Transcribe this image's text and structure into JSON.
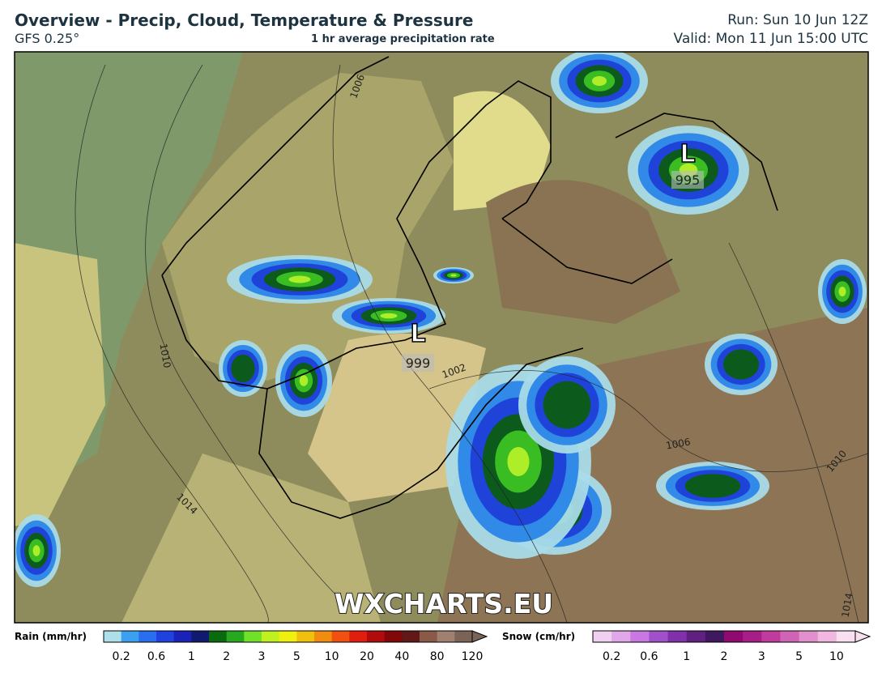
{
  "header": {
    "title": "Overview - Precip, Cloud, Temperature & Pressure",
    "model": "GFS 0.25°",
    "subtitle": "1 hr average precipitation rate",
    "run": "Run: Sun 10 Jun 12Z",
    "valid": "Valid: Mon 11 Jun 15:00 UTC"
  },
  "map": {
    "isobar_labels": [
      "1006",
      "1010",
      "1014",
      "1002",
      "1006",
      "1010",
      "1014"
    ],
    "lows": [
      {
        "symbol": "L",
        "pressure": "995"
      },
      {
        "symbol": "L",
        "pressure": "999"
      }
    ],
    "watermark": "WXCHARTS.EU"
  },
  "legend": {
    "rain": {
      "title": "Rain (mm/hr)",
      "ticks": [
        "0.2",
        "0.6",
        "1",
        "2",
        "3",
        "5",
        "10",
        "20",
        "40",
        "80",
        "120"
      ]
    },
    "snow": {
      "title": "Snow (cm/hr)",
      "ticks": [
        "0.2",
        "0.6",
        "1",
        "2",
        "3",
        "5",
        "10"
      ]
    }
  }
}
